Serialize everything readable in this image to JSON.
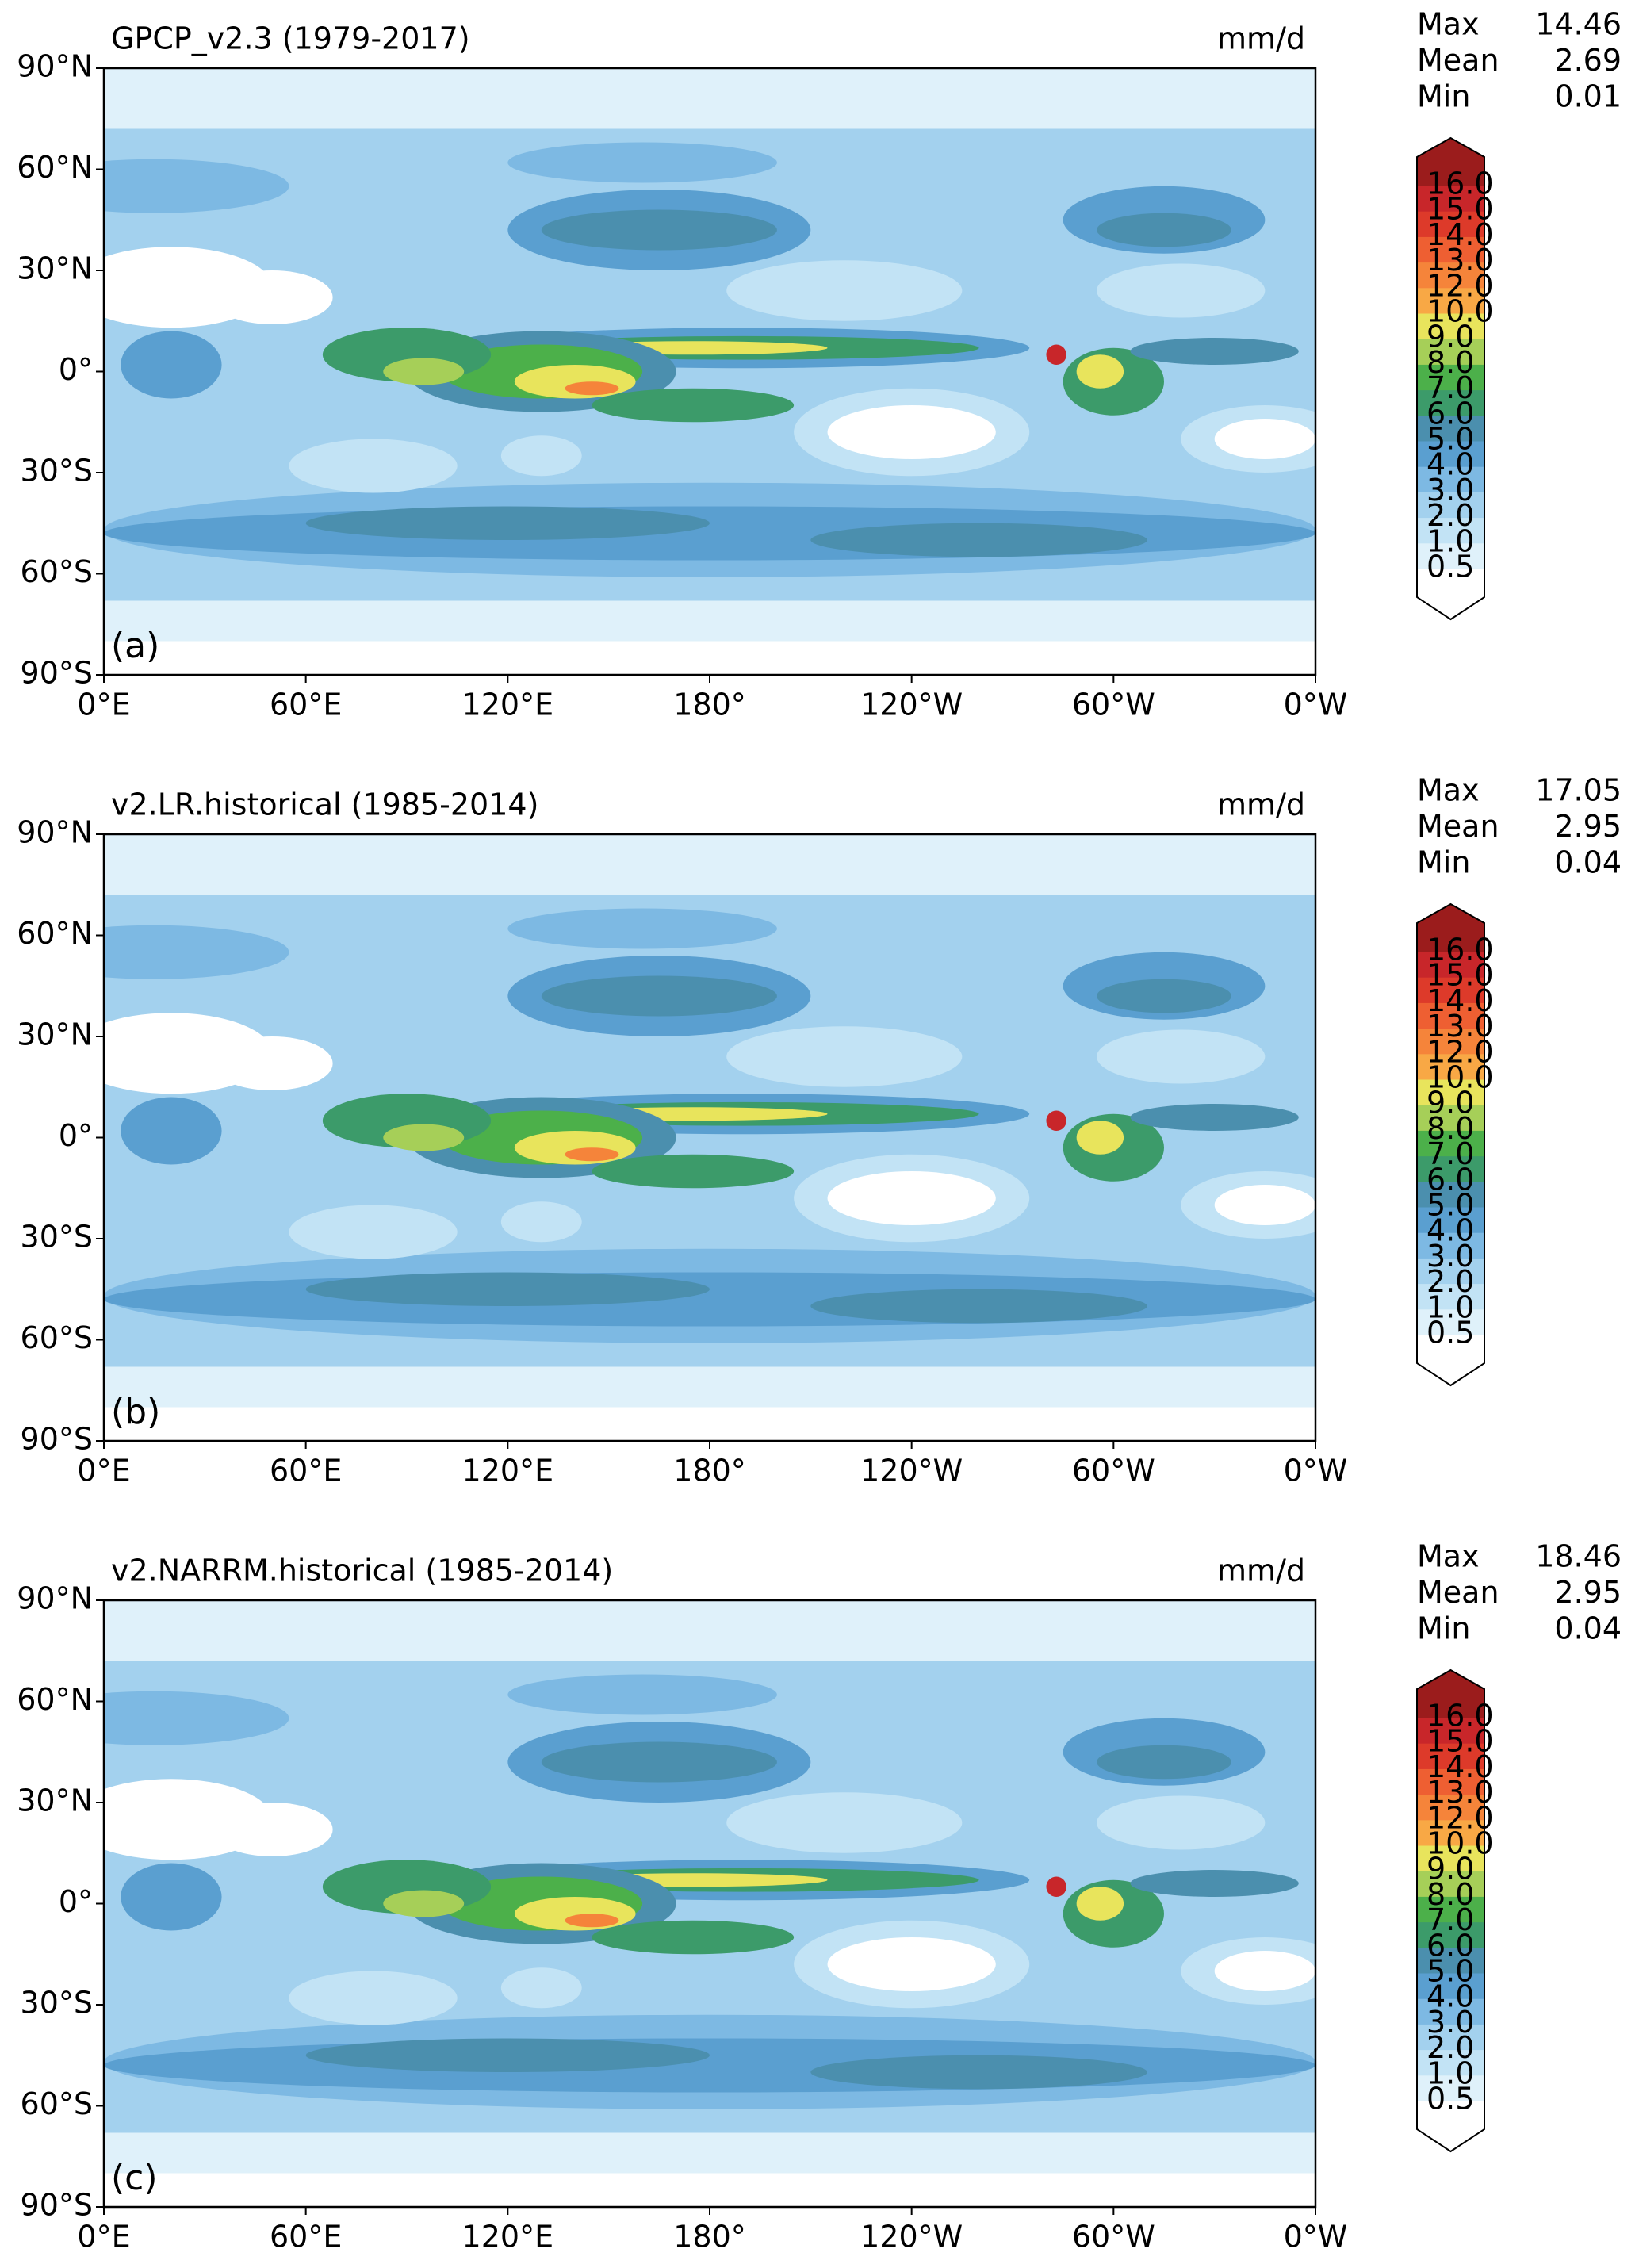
{
  "panels": [
    {
      "title": "GPCP_v2.3 (1979-2017)",
      "units": "mm/d",
      "label": "(a)",
      "stats": [
        {
          "name": "Max",
          "value": "14.46"
        },
        {
          "name": "Mean",
          "value": "2.69"
        },
        {
          "name": "Min",
          "value": "0.01"
        }
      ]
    },
    {
      "title": "v2.LR.historical (1985-2014)",
      "units": "mm/d",
      "label": "(b)",
      "stats": [
        {
          "name": "Max",
          "value": "17.05"
        },
        {
          "name": "Mean",
          "value": "2.95"
        },
        {
          "name": "Min",
          "value": "0.04"
        }
      ]
    },
    {
      "title": "v2.NARRM.historical (1985-2014)",
      "units": "mm/d",
      "label": "(c)",
      "stats": [
        {
          "name": "Max",
          "value": "18.46"
        },
        {
          "name": "Mean",
          "value": "2.95"
        },
        {
          "name": "Min",
          "value": "0.04"
        }
      ]
    }
  ],
  "xticks": [
    "0°E",
    "60°E",
    "120°E",
    "180°",
    "120°W",
    "60°W",
    "0°W"
  ],
  "yticks": [
    "90°N",
    "60°N",
    "30°N",
    "0°",
    "30°S",
    "60°S",
    "90°S"
  ],
  "colorbar": {
    "levels": [
      "0.5",
      "1.0",
      "2.0",
      "3.0",
      "4.0",
      "5.0",
      "6.0",
      "7.0",
      "8.0",
      "9.0",
      "10.0",
      "12.0",
      "13.0",
      "14.0",
      "15.0",
      "16.0"
    ],
    "colors": [
      "#ffffff",
      "#dff1fa",
      "#c2e3f5",
      "#a3d1ee",
      "#7db9e3",
      "#5a9fd0",
      "#4b8fae",
      "#3c9b6a",
      "#4cb04a",
      "#a6cf58",
      "#e8e45c",
      "#f8a845",
      "#f5843a",
      "#ee5f32",
      "#dd3a2a",
      "#c8262a",
      "#9b1c1c"
    ]
  }
}
